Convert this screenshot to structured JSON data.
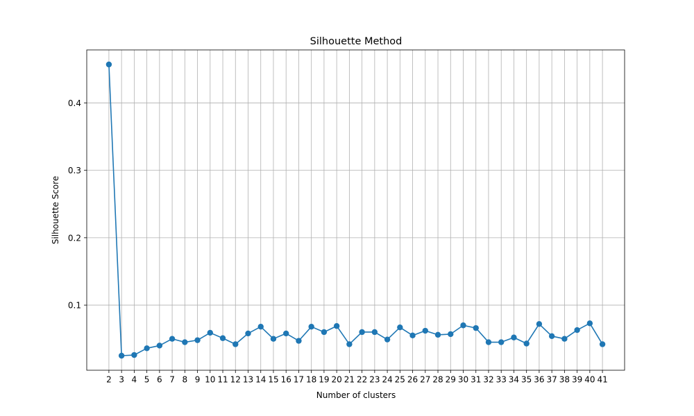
{
  "chart_data": {
    "type": "line",
    "title": "Silhouette Method",
    "xlabel": "Number of clusters",
    "ylabel": "Silhouette Score",
    "x": [
      2,
      3,
      4,
      5,
      6,
      7,
      8,
      9,
      10,
      11,
      12,
      13,
      14,
      15,
      16,
      17,
      18,
      19,
      20,
      21,
      22,
      23,
      24,
      25,
      26,
      27,
      28,
      29,
      30,
      31,
      32,
      33,
      34,
      35,
      36,
      37,
      38,
      39,
      40,
      41
    ],
    "series": [
      {
        "name": "",
        "values": [
          0.457,
          0.025,
          0.026,
          0.036,
          0.04,
          0.05,
          0.045,
          0.048,
          0.059,
          0.051,
          0.042,
          0.058,
          0.068,
          0.05,
          0.058,
          0.047,
          0.068,
          0.06,
          0.069,
          0.042,
          0.06,
          0.06,
          0.049,
          0.067,
          0.055,
          0.062,
          0.056,
          0.057,
          0.07,
          0.066,
          0.045,
          0.045,
          0.052,
          0.043,
          0.072,
          0.054,
          0.05,
          0.063,
          0.073,
          0.042
        ],
        "color": "#1f77b4",
        "marker": "circle"
      }
    ],
    "xticks": [
      "2",
      "3",
      "4",
      "5",
      "6",
      "7",
      "8",
      "9",
      "10",
      "11",
      "12",
      "13",
      "14",
      "15",
      "16",
      "17",
      "18",
      "19",
      "20",
      "21",
      "22",
      "23",
      "24",
      "25",
      "26",
      "27",
      "28",
      "29",
      "30",
      "31",
      "32",
      "33",
      "34",
      "35",
      "36",
      "37",
      "38",
      "39",
      "40",
      "41"
    ],
    "yticks": [
      0.1,
      0.2,
      0.3,
      0.4
    ],
    "ytick_labels": [
      "0.1",
      "0.2",
      "0.3",
      "0.4"
    ],
    "xlim": [
      0.25,
      42.75
    ],
    "ylim": [
      0.0034,
      0.4786
    ],
    "grid": true,
    "grid_color": "#b0b0b0",
    "legend": "none"
  }
}
